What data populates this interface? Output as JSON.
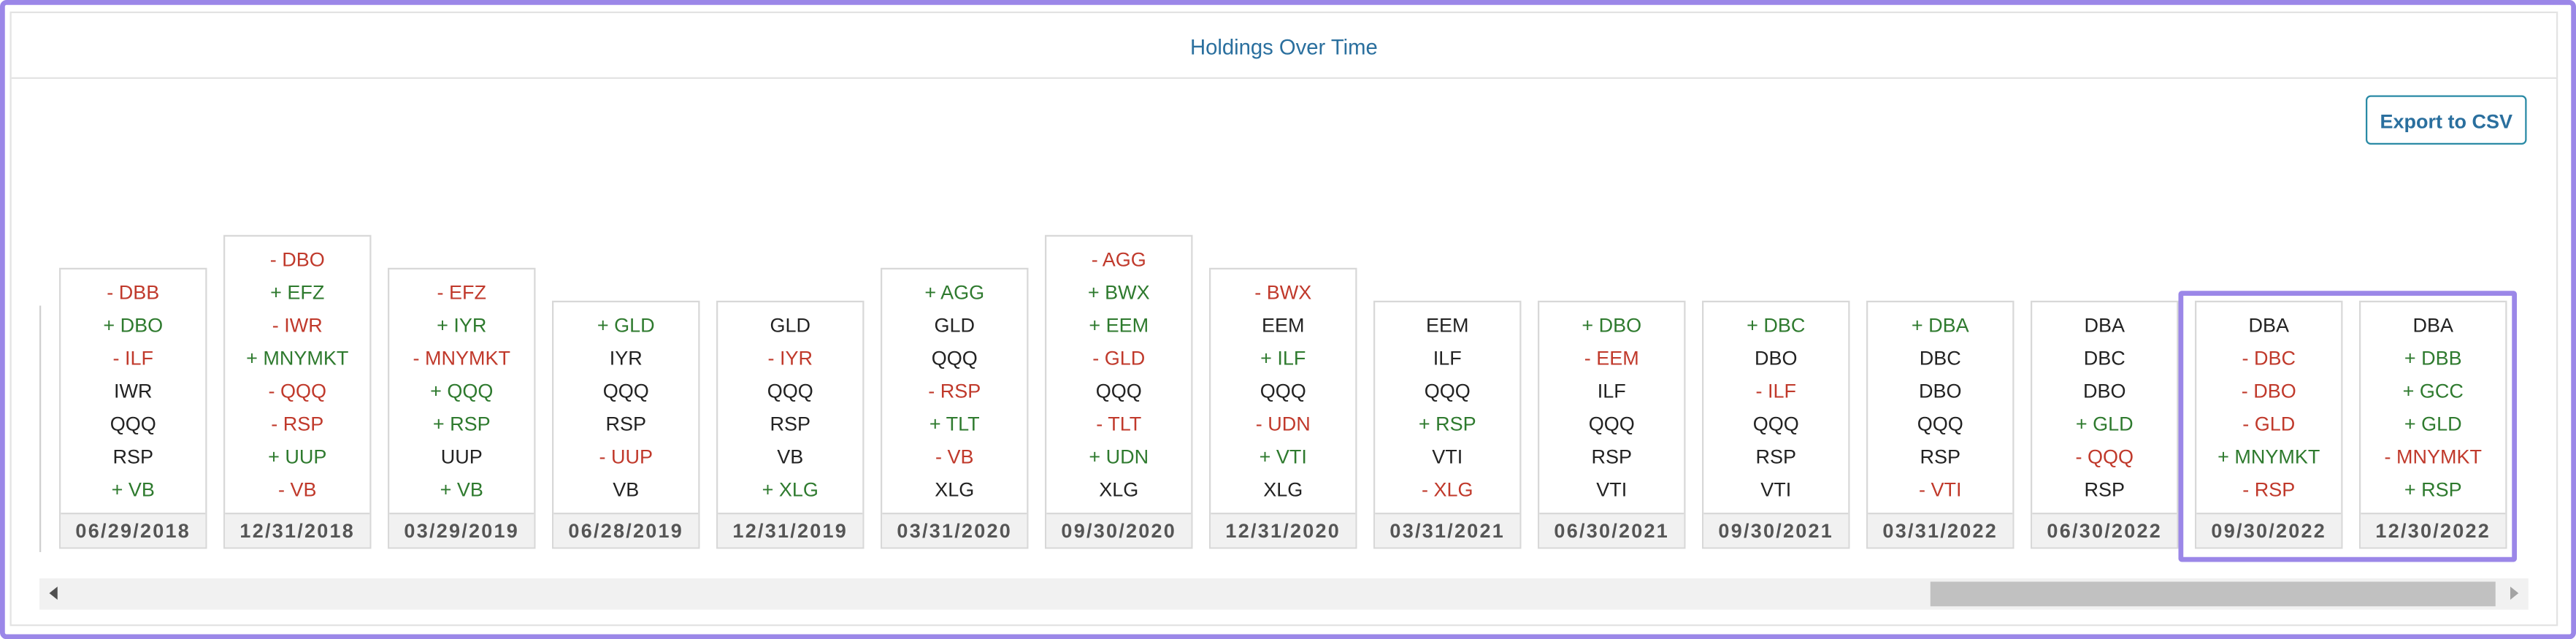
{
  "header": {
    "title": "Holdings Over Time"
  },
  "toolbar": {
    "export_button": "Export to CSV"
  },
  "columns": [
    {
      "date": "06/29/2018",
      "items": [
        "- DBB",
        "+ DBO",
        "- ILF",
        "IWR",
        "QQQ",
        "RSP",
        "+ VB"
      ]
    },
    {
      "date": "12/31/2018",
      "items": [
        "- DBO",
        "+ EFZ",
        "- IWR",
        "+ MNYMKT",
        "- QQQ",
        "- RSP",
        "+ UUP",
        "- VB"
      ]
    },
    {
      "date": "03/29/2019",
      "items": [
        "- EFZ",
        "+ IYR",
        "- MNYMKT",
        "+ QQQ",
        "+ RSP",
        "UUP",
        "+ VB"
      ]
    },
    {
      "date": "06/28/2019",
      "items": [
        "+ GLD",
        "IYR",
        "QQQ",
        "RSP",
        "- UUP",
        "VB"
      ]
    },
    {
      "date": "12/31/2019",
      "items": [
        "GLD",
        "- IYR",
        "QQQ",
        "RSP",
        "VB",
        "+ XLG"
      ]
    },
    {
      "date": "03/31/2020",
      "items": [
        "+ AGG",
        "GLD",
        "QQQ",
        "- RSP",
        "+ TLT",
        "- VB",
        "XLG"
      ]
    },
    {
      "date": "09/30/2020",
      "items": [
        "- AGG",
        "+ BWX",
        "+ EEM",
        "- GLD",
        "QQQ",
        "- TLT",
        "+ UDN",
        "XLG"
      ]
    },
    {
      "date": "12/31/2020",
      "items": [
        "- BWX",
        "EEM",
        "+ ILF",
        "QQQ",
        "- UDN",
        "+ VTI",
        "XLG"
      ]
    },
    {
      "date": "03/31/2021",
      "items": [
        "EEM",
        "ILF",
        "QQQ",
        "+ RSP",
        "VTI",
        "- XLG"
      ]
    },
    {
      "date": "06/30/2021",
      "items": [
        "+ DBO",
        "- EEM",
        "ILF",
        "QQQ",
        "RSP",
        "VTI"
      ]
    },
    {
      "date": "09/30/2021",
      "items": [
        "+ DBC",
        "DBO",
        "- ILF",
        "QQQ",
        "RSP",
        "VTI"
      ]
    },
    {
      "date": "03/31/2022",
      "items": [
        "+ DBA",
        "DBC",
        "DBO",
        "QQQ",
        "RSP",
        "- VTI"
      ]
    },
    {
      "date": "06/30/2022",
      "items": [
        "DBA",
        "DBC",
        "DBO",
        "+ GLD",
        "- QQQ",
        "RSP"
      ]
    },
    {
      "date": "09/30/2022",
      "items": [
        "DBA",
        "- DBC",
        "- DBO",
        "- GLD",
        "+ MNYMKT",
        "- RSP"
      ]
    },
    {
      "date": "12/30/2022",
      "items": [
        "DBA",
        "+ DBB",
        "+ GCC",
        "+ GLD",
        "- MNYMKT",
        "+ RSP"
      ]
    }
  ]
}
